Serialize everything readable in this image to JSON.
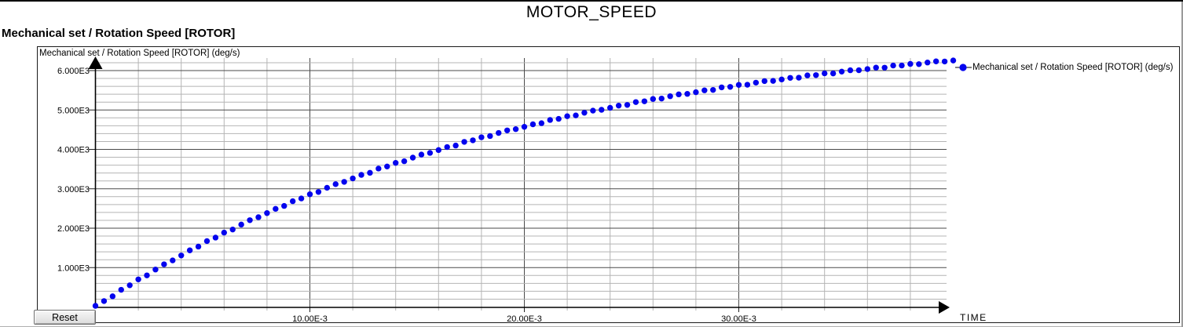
{
  "window": {
    "title": "MOTOR_SPEED",
    "subtitle": "Mechanical set / Rotation Speed [ROTOR]"
  },
  "plot": {
    "inner_label": "Mechanical set / Rotation Speed [ROTOR] (deg/s)",
    "x_axis_label": "TIME",
    "reset_button_label": "Reset",
    "legend_label": "Mechanical set / Rotation Speed [ROTOR] (deg/s)"
  },
  "colors": {
    "series": "#0404ee",
    "grid_minor": "#b4b4b4",
    "grid_major": "#4a4a4a",
    "axis": "#000000"
  },
  "chart_data": {
    "type": "scatter",
    "title": "MOTOR_SPEED",
    "xlabel": "TIME",
    "ylabel": "Mechanical set / Rotation Speed [ROTOR] (deg/s)",
    "xlim_s": [
      0,
      0.04
    ],
    "ylim": [
      0,
      6200
    ],
    "grid": true,
    "x_minor_step_ms": 2,
    "y_minor_step": 200,
    "legend_position": "right",
    "x_ticks": {
      "values_ms": [
        10,
        20,
        30
      ],
      "labels": [
        "10.00E-3",
        "20.00E-3",
        "30.00E-3"
      ]
    },
    "y_ticks": {
      "values": [
        1000,
        2000,
        3000,
        4000,
        5000,
        6000
      ],
      "labels": [
        "1.000E3",
        "2.000E3",
        "3.000E3",
        "4.000E3",
        "5.000E3",
        "6.000E3"
      ]
    },
    "series": [
      {
        "name": "Mechanical set / Rotation Speed [ROTOR] (deg/s)",
        "color": "#0404ee",
        "marker": "circle",
        "x_ms": [
          0.0,
          0.4,
          0.8,
          1.2,
          1.6,
          2.0,
          2.4,
          2.8,
          3.2,
          3.6,
          4.0,
          4.4,
          4.8,
          5.2,
          5.6,
          6.0,
          6.4,
          6.8,
          7.2,
          7.6,
          8.0,
          8.4,
          8.8,
          9.2,
          9.6,
          10.0,
          10.4,
          10.8,
          11.2,
          11.6,
          12.0,
          12.4,
          12.8,
          13.2,
          13.6,
          14.0,
          14.4,
          14.8,
          15.2,
          15.6,
          16.0,
          16.4,
          16.8,
          17.2,
          17.6,
          18.0,
          18.4,
          18.8,
          19.2,
          19.6,
          20.0,
          20.4,
          20.8,
          21.2,
          21.6,
          22.0,
          22.4,
          22.8,
          23.2,
          23.6,
          24.0,
          24.4,
          24.8,
          25.2,
          25.6,
          26.0,
          26.4,
          26.8,
          27.2,
          27.6,
          28.0,
          28.4,
          28.8,
          29.2,
          29.6,
          30.0,
          30.4,
          30.8,
          31.2,
          31.6,
          32.0,
          32.4,
          32.8,
          33.2,
          33.6,
          34.0,
          34.4,
          34.8,
          35.2,
          35.6,
          36.0,
          36.4,
          36.8,
          37.2,
          37.6,
          38.0,
          38.4,
          38.8,
          39.2,
          39.6,
          40.0
        ],
        "values": [
          30,
          151,
          272,
          437,
          551,
          701,
          803,
          951,
          1084,
          1183,
          1308,
          1438,
          1533,
          1673,
          1762,
          1889,
          1967,
          2092,
          2203,
          2279,
          2383,
          2491,
          2565,
          2685,
          2754,
          2861,
          2920,
          3026,
          3118,
          3176,
          3263,
          3353,
          3406,
          3513,
          3566,
          3657,
          3700,
          3791,
          3868,
          3911,
          3983,
          4059,
          4098,
          4191,
          4231,
          4308,
          4339,
          4417,
          4482,
          4513,
          4573,
          4637,
          4665,
          4747,
          4775,
          4842,
          4862,
          4930,
          4984,
          5005,
          5055,
          5111,
          5129,
          5201,
          5221,
          5279,
          5290,
          5349,
          5396,
          5409,
          5451,
          5498,
          5509,
          5574,
          5586,
          5637,
          5641,
          5693,
          5733,
          5739,
          5774,
          5815,
          5820,
          5878,
          5885,
          5929,
          5928,
          5974,
          6008,
          6009,
          6039,
          6075,
          6074,
          6128,
          6129,
          6169,
          6163,
          6205,
          6234,
          6231,
          6256
        ]
      }
    ]
  }
}
